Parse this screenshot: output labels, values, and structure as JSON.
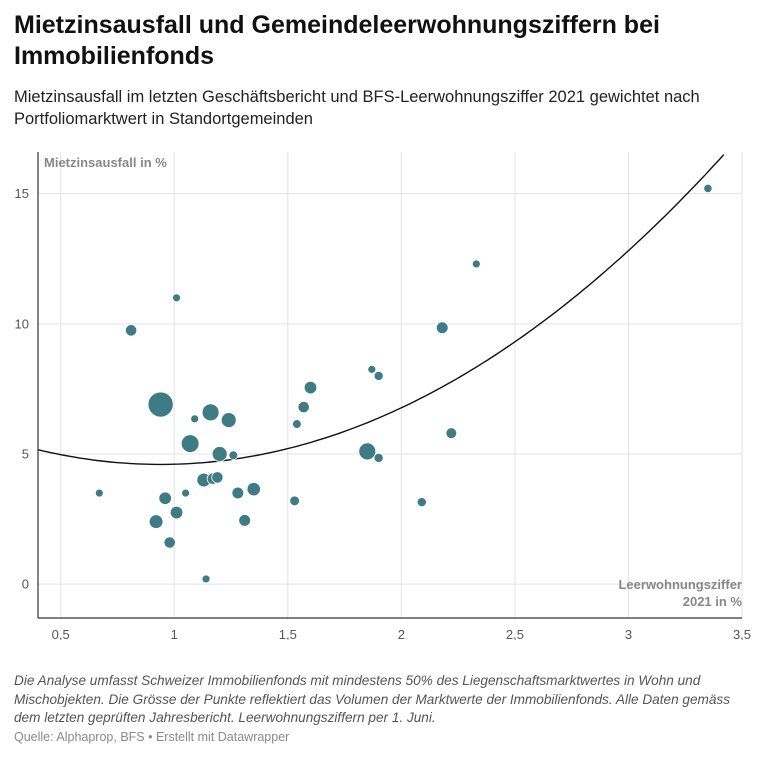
{
  "header": {
    "title": "Mietzinsausfall und Gemeindeleerwohnungsziffern bei Immobilienfonds",
    "subtitle": "Mietzinsausfall im letzten Geschäftsbericht und BFS-Leerwohnungsziffer 2021 gewichtet nach Portfoliomarktwert in Standortgemeinden"
  },
  "footer": {
    "note": "Die Analyse umfasst Schweizer Immobilienfonds mit mindestens 50% des Liegenschaftsmarktwertes in Wohn und Mischobjekten. Die Grösse der Punkte reflektiert das Volumen der Marktwerte der Immobilienfonds. Alle Daten gemäss dem letzten geprüften Jahresbericht. Leerwohnungsziffern per 1. Juni.",
    "source": "Quelle: Alphaprop, BFS • Erstellt mit Datawrapper"
  },
  "colors": {
    "point": "#3d7b85",
    "trend": "#111111",
    "grid": "#e3e3e3",
    "axis": "#333333"
  },
  "chart_data": {
    "type": "scatter",
    "title": "Mietzinsausfall und Gemeindeleerwohnungsziffern bei Immobilienfonds",
    "xlabel_lines": [
      "Leerwohnungsziffer",
      "2021 in %"
    ],
    "ylabel": "Mietzinsausfall in %",
    "xlim": [
      0.4,
      3.5
    ],
    "ylim": [
      -1.3,
      16.6
    ],
    "xticks": [
      0.5,
      1,
      1.5,
      2,
      2.5,
      3,
      3.5
    ],
    "xtick_labels": [
      "0,5",
      "1",
      "1,5",
      "2",
      "2,5",
      "3",
      "3,5"
    ],
    "yticks": [
      0,
      5,
      10,
      15
    ],
    "ytick_labels": [
      "0",
      "5",
      "10",
      "15"
    ],
    "size_encoding": "Marktwert-Volumen (relativ)",
    "points": [
      {
        "x": 0.67,
        "y": 3.5,
        "size": 1
      },
      {
        "x": 0.81,
        "y": 9.75,
        "size": 2
      },
      {
        "x": 0.92,
        "y": 2.4,
        "size": 3
      },
      {
        "x": 0.94,
        "y": 6.9,
        "size": 10
      },
      {
        "x": 0.96,
        "y": 3.3,
        "size": 2.5
      },
      {
        "x": 0.98,
        "y": 1.6,
        "size": 2
      },
      {
        "x": 1.01,
        "y": 2.75,
        "size": 2.5
      },
      {
        "x": 1.01,
        "y": 11.0,
        "size": 1
      },
      {
        "x": 1.05,
        "y": 3.5,
        "size": 1
      },
      {
        "x": 1.07,
        "y": 5.4,
        "size": 5
      },
      {
        "x": 1.09,
        "y": 6.35,
        "size": 1
      },
      {
        "x": 1.13,
        "y": 4.0,
        "size": 3
      },
      {
        "x": 1.14,
        "y": 0.2,
        "size": 1
      },
      {
        "x": 1.16,
        "y": 6.6,
        "size": 4.5
      },
      {
        "x": 1.17,
        "y": 4.05,
        "size": 2
      },
      {
        "x": 1.19,
        "y": 4.1,
        "size": 2
      },
      {
        "x": 1.2,
        "y": 5.0,
        "size": 3.5
      },
      {
        "x": 1.24,
        "y": 6.3,
        "size": 3.5
      },
      {
        "x": 1.26,
        "y": 4.95,
        "size": 1.2
      },
      {
        "x": 1.28,
        "y": 3.5,
        "size": 2.2
      },
      {
        "x": 1.31,
        "y": 2.45,
        "size": 2.2
      },
      {
        "x": 1.35,
        "y": 3.65,
        "size": 2.8
      },
      {
        "x": 1.53,
        "y": 3.2,
        "size": 1.5
      },
      {
        "x": 1.54,
        "y": 6.15,
        "size": 1.2
      },
      {
        "x": 1.57,
        "y": 6.8,
        "size": 2
      },
      {
        "x": 1.6,
        "y": 7.55,
        "size": 2.5
      },
      {
        "x": 1.85,
        "y": 5.1,
        "size": 4.5
      },
      {
        "x": 1.87,
        "y": 8.25,
        "size": 1
      },
      {
        "x": 1.9,
        "y": 4.85,
        "size": 1.3
      },
      {
        "x": 1.9,
        "y": 8.0,
        "size": 1.3
      },
      {
        "x": 2.09,
        "y": 3.15,
        "size": 1.3
      },
      {
        "x": 2.18,
        "y": 9.85,
        "size": 2.2
      },
      {
        "x": 2.22,
        "y": 5.8,
        "size": 1.8
      },
      {
        "x": 2.33,
        "y": 12.3,
        "size": 1
      },
      {
        "x": 3.35,
        "y": 15.2,
        "size": 1.1
      }
    ],
    "trendline": {
      "type": "quadratic",
      "x": [
        0.4,
        0.94,
        1.5,
        2.0,
        2.5,
        3.0,
        3.42
      ],
      "y": [
        5.15,
        4.6,
        5.25,
        6.85,
        9.2,
        12.4,
        16.5
      ]
    }
  }
}
